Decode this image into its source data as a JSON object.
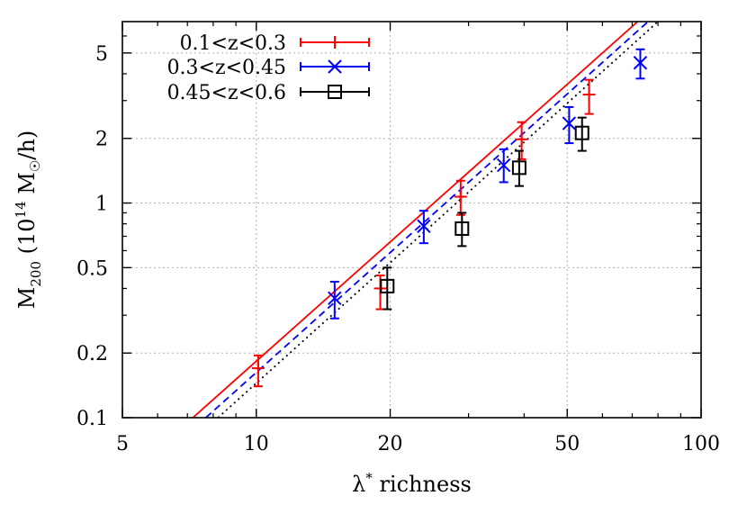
{
  "chart_data": {
    "type": "scatter",
    "xscale": "log",
    "yscale": "log",
    "xlim": [
      5,
      100
    ],
    "ylim": [
      0.1,
      7
    ],
    "grid": true,
    "legend_position": "top-left",
    "xticks": [
      5,
      10,
      20,
      50,
      100
    ],
    "xtick_labels": [
      "5",
      "10",
      "20",
      "50",
      "100"
    ],
    "yticks": [
      0.1,
      0.2,
      0.5,
      1,
      2,
      5
    ],
    "ytick_labels": [
      "0.1",
      "0.2",
      "0.5",
      "1",
      "2",
      "5"
    ],
    "xlabel": {
      "main": "λ",
      "sup": "*",
      "rest": " richness"
    },
    "ylabel": {
      "m": "M",
      "sub": "200",
      "open": " (10",
      "sup": "14",
      "mid": " M",
      "sun": "☉",
      "close": "/h)"
    },
    "series": [
      {
        "name": "0.1<z<0.3",
        "color": "#ff0000",
        "marker": "plus",
        "line_style": "solid",
        "points": [
          {
            "x": 10.1,
            "y": 0.17,
            "ylo": 0.14,
            "yhi": 0.195
          },
          {
            "x": 19.0,
            "y": 0.4,
            "ylo": 0.32,
            "yhi": 0.46
          },
          {
            "x": 28.8,
            "y": 1.07,
            "ylo": 0.88,
            "yhi": 1.27
          },
          {
            "x": 39.5,
            "y": 1.98,
            "ylo": 1.6,
            "yhi": 2.38
          },
          {
            "x": 56.0,
            "y": 3.2,
            "ylo": 2.6,
            "yhi": 3.75
          }
        ],
        "fit": [
          [
            7.2,
            0.1
          ],
          [
            72,
            7.0
          ]
        ]
      },
      {
        "name": "0.3<z<0.45",
        "color": "#0000ff",
        "marker": "cross",
        "line_style": "dashed",
        "points": [
          {
            "x": 15.0,
            "y": 0.36,
            "ylo": 0.29,
            "yhi": 0.43
          },
          {
            "x": 23.8,
            "y": 0.78,
            "ylo": 0.65,
            "yhi": 0.92
          },
          {
            "x": 36.0,
            "y": 1.5,
            "ylo": 1.25,
            "yhi": 1.78
          },
          {
            "x": 50.5,
            "y": 2.35,
            "ylo": 1.9,
            "yhi": 2.8
          },
          {
            "x": 73.0,
            "y": 4.5,
            "ylo": 3.8,
            "yhi": 5.2
          }
        ],
        "fit": [
          [
            7.7,
            0.1
          ],
          [
            76,
            7.0
          ]
        ]
      },
      {
        "name": "0.45<z<0.6",
        "color": "#000000",
        "marker": "open-square",
        "line_style": "dotted",
        "points": [
          {
            "x": 19.7,
            "y": 0.41,
            "ylo": 0.32,
            "yhi": 0.5
          },
          {
            "x": 29.0,
            "y": 0.76,
            "ylo": 0.63,
            "yhi": 0.9
          },
          {
            "x": 39.0,
            "y": 1.46,
            "ylo": 1.2,
            "yhi": 1.75
          },
          {
            "x": 54.0,
            "y": 2.12,
            "ylo": 1.75,
            "yhi": 2.5
          }
        ],
        "fit": [
          [
            8.2,
            0.1
          ],
          [
            80,
            7.0
          ]
        ]
      }
    ]
  }
}
